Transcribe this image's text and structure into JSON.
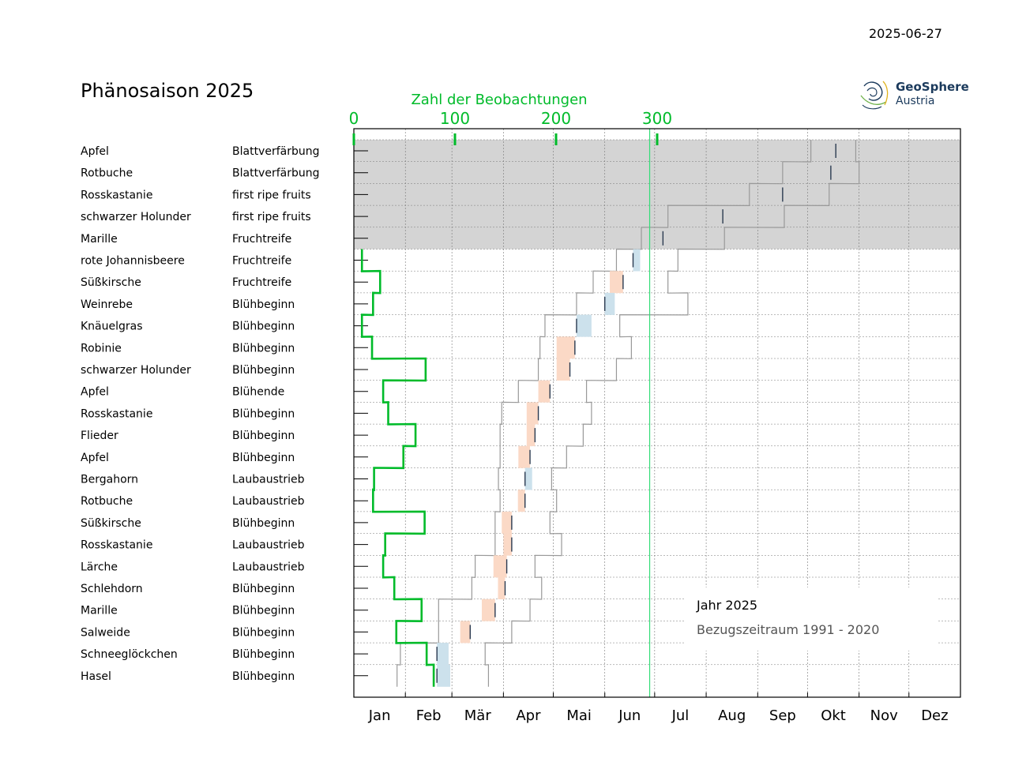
{
  "date": "2025-06-27",
  "title": "Phänosaison 2025",
  "logo": {
    "line1": "GeoSphere",
    "line2": "Austria"
  },
  "top_axis": {
    "label": "Zahl der Beobachtungen",
    "ticks": [
      "0",
      "100",
      "200",
      "300"
    ],
    "color": "#00bb2a"
  },
  "months": [
    "Jan",
    "Feb",
    "Mär",
    "Apr",
    "Mai",
    "Jun",
    "Jul",
    "Aug",
    "Sep",
    "Okt",
    "Nov",
    "Dez"
  ],
  "legend": {
    "year_label": "Jahr 2025",
    "ref_label": "Bezugszeitraum 1991 - 2020"
  },
  "colors": {
    "early": "#fbd9c6",
    "late": "#cce1ec",
    "count_line": "#00bb2a",
    "today": "#33dd77",
    "future_band": "#d4d4d4",
    "envelope": "#999999"
  },
  "chart_data": {
    "type": "phenology-timeline",
    "x_unit": "day of year",
    "xlim": [
      0,
      365
    ],
    "today_doy": 178,
    "count_xlim": [
      0,
      600
    ],
    "rows": [
      {
        "plant": "Apfel",
        "phase": "Blattverfärbung",
        "future": true,
        "median": 290,
        "inner": [
          275,
          302
        ],
        "outer": [
          275,
          302
        ],
        "count": null,
        "obs": null
      },
      {
        "plant": "Rotbuche",
        "phase": "Blattverfärbung",
        "future": true,
        "median": 287,
        "inner": [
          258,
          304
        ],
        "outer": [
          258,
          304
        ],
        "count": null,
        "obs": null
      },
      {
        "plant": "Rosskastanie",
        "phase": "first ripe fruits",
        "future": true,
        "median": 258,
        "inner": [
          238,
          286
        ],
        "outer": [
          238,
          286
        ],
        "count": null,
        "obs": null
      },
      {
        "plant": "schwarzer Holunder",
        "phase": "first ripe fruits",
        "future": true,
        "median": 222,
        "inner": [
          189,
          259
        ],
        "outer": [
          189,
          259
        ],
        "count": null,
        "obs": null
      },
      {
        "plant": "Marille",
        "phase": "Fruchtreife",
        "future": true,
        "median": 186,
        "inner": [
          173,
          223
        ],
        "outer": [
          173,
          223
        ],
        "count": null,
        "obs": null
      },
      {
        "plant": "rote Johannisbeere",
        "phase": "Fruchtreife",
        "future": false,
        "median": 168,
        "inner": [
          158,
          195
        ],
        "outer": [
          158,
          195
        ],
        "count": 8,
        "obs": 168
      },
      {
        "plant": "Süßkirsche",
        "phase": "Fruchtreife",
        "future": false,
        "median": 162,
        "inner": [
          144,
          189
        ],
        "outer": [
          144,
          189
        ],
        "count": 26,
        "obs": 154
      },
      {
        "plant": "Weinrebe",
        "phase": "Blühbeginn",
        "future": false,
        "median": 151,
        "inner": [
          134,
          201
        ],
        "outer": [
          134,
          201
        ],
        "count": 19,
        "obs": 157
      },
      {
        "plant": "Knäuelgras",
        "phase": "Blühbeginn",
        "future": false,
        "median": 134,
        "inner": [
          115,
          160
        ],
        "outer": [
          115,
          160
        ],
        "count": 8,
        "obs": 143
      },
      {
        "plant": "Robinie",
        "phase": "Blühbeginn",
        "future": false,
        "median": 133,
        "inner": [
          112,
          167
        ],
        "outer": [
          112,
          167
        ],
        "count": 18,
        "obs": 122
      },
      {
        "plant": "schwarzer Holunder",
        "phase": "Blühbeginn",
        "future": false,
        "median": 130,
        "inner": [
          111,
          158
        ],
        "outer": [
          111,
          158
        ],
        "count": 71,
        "obs": 122
      },
      {
        "plant": "Apfel",
        "phase": "Blühende",
        "future": false,
        "median": 118,
        "inner": [
          99,
          140
        ],
        "outer": [
          99,
          140
        ],
        "count": 29,
        "obs": 111
      },
      {
        "plant": "Rosskastanie",
        "phase": "Blühbeginn",
        "future": false,
        "median": 111,
        "inner": [
          89,
          143
        ],
        "outer": [
          89,
          143
        ],
        "count": 34,
        "obs": 104
      },
      {
        "plant": "Flieder",
        "phase": "Blühbeginn",
        "future": false,
        "median": 109,
        "inner": [
          88,
          138
        ],
        "outer": [
          88,
          138
        ],
        "count": 61,
        "obs": 104
      },
      {
        "plant": "Apfel",
        "phase": "Blühbeginn",
        "future": false,
        "median": 106,
        "inner": [
          88,
          128
        ],
        "outer": [
          88,
          128
        ],
        "count": 49,
        "obs": 99
      },
      {
        "plant": "Bergahorn",
        "phase": "Laubaustrieb",
        "future": false,
        "median": 103,
        "inner": [
          87,
          119
        ],
        "outer": [
          87,
          119
        ],
        "count": 20,
        "obs": 103
      },
      {
        "plant": "Rotbuche",
        "phase": "Laubaustrieb",
        "future": false,
        "median": 103,
        "inner": [
          88,
          122
        ],
        "outer": [
          88,
          122
        ],
        "count": 19,
        "obs": 101
      },
      {
        "plant": "Süßkirsche",
        "phase": "Blühbeginn",
        "future": false,
        "median": 95,
        "inner": [
          85,
          118
        ],
        "outer": [
          85,
          118
        ],
        "count": 70,
        "obs": 89
      },
      {
        "plant": "Rosskastanie",
        "phase": "Laubaustrieb",
        "future": false,
        "median": 95,
        "inner": [
          85,
          125
        ],
        "outer": [
          85,
          125
        ],
        "count": 31,
        "obs": 90
      },
      {
        "plant": "Lärche",
        "phase": "Laubaustrieb",
        "future": false,
        "median": 92,
        "inner": [
          73,
          109
        ],
        "outer": [
          73,
          109
        ],
        "count": 29,
        "obs": 84
      },
      {
        "plant": "Schlehdorn",
        "phase": "Blühbeginn",
        "future": false,
        "median": 91,
        "inner": [
          71,
          113
        ],
        "outer": [
          71,
          113
        ],
        "count": 40,
        "obs": 87
      },
      {
        "plant": "Marille",
        "phase": "Blühbeginn",
        "future": false,
        "median": 85,
        "inner": [
          51,
          106
        ],
        "outer": [
          51,
          106
        ],
        "count": 67,
        "obs": 77
      },
      {
        "plant": "Salweide",
        "phase": "Blühbeginn",
        "future": false,
        "median": 70,
        "inner": [
          51,
          95
        ],
        "outer": [
          51,
          95
        ],
        "count": 42,
        "obs": 64
      },
      {
        "plant": "Schneeglöckchen",
        "phase": "Blühbeginn",
        "future": false,
        "median": 50,
        "inner": [
          28,
          79
        ],
        "outer": [
          28,
          79
        ],
        "count": 72,
        "obs": 57
      },
      {
        "plant": "Hasel",
        "phase": "Blühbeginn",
        "future": false,
        "median": 50,
        "inner": [
          26,
          81
        ],
        "outer": [
          26,
          81
        ],
        "count": 79,
        "obs": 58
      }
    ]
  }
}
